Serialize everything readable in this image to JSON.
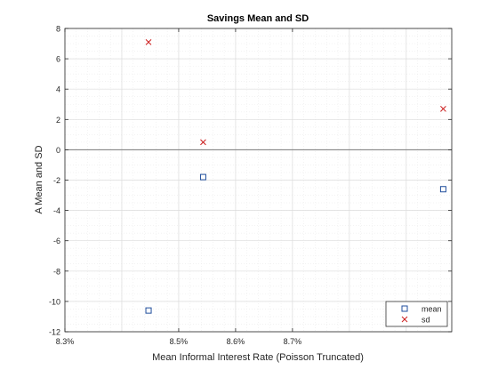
{
  "chart_data": {
    "type": "scatter",
    "title": "Savings Mean and SD",
    "xlabel": "Mean Informal Interest Rate (Poisson Truncated)",
    "ylabel": "A Mean and SD",
    "x_range": [
      8.3,
      8.98
    ],
    "ylim": [
      -12,
      8
    ],
    "x_ticks": [
      8.3,
      8.5,
      8.6,
      8.7
    ],
    "x_tick_labels": [
      "8.3%",
      "8.5%",
      "8.6%",
      "8.7%"
    ],
    "y_ticks": [
      -12,
      -10,
      -8,
      -6,
      -4,
      -2,
      0,
      2,
      4,
      6,
      8
    ],
    "y_tick_labels": [
      "-12",
      "-10",
      "-8",
      "-6",
      "-4",
      "-2",
      "0",
      "2",
      "4",
      "6",
      "8"
    ],
    "zero_line": 0,
    "grid": true,
    "minor_grid": true,
    "legend_position": "bottom-right",
    "series": [
      {
        "name": "mean",
        "marker": "square",
        "color": "#1f4e9c",
        "points": [
          {
            "x": 8.447,
            "y": -10.6
          },
          {
            "x": 8.543,
            "y": -1.8
          },
          {
            "x": 8.965,
            "y": -2.6
          }
        ]
      },
      {
        "name": "sd",
        "marker": "x",
        "color": "#cc1f1f",
        "points": [
          {
            "x": 8.447,
            "y": 7.1
          },
          {
            "x": 8.543,
            "y": 0.5
          },
          {
            "x": 8.965,
            "y": 2.7
          }
        ]
      }
    ]
  }
}
